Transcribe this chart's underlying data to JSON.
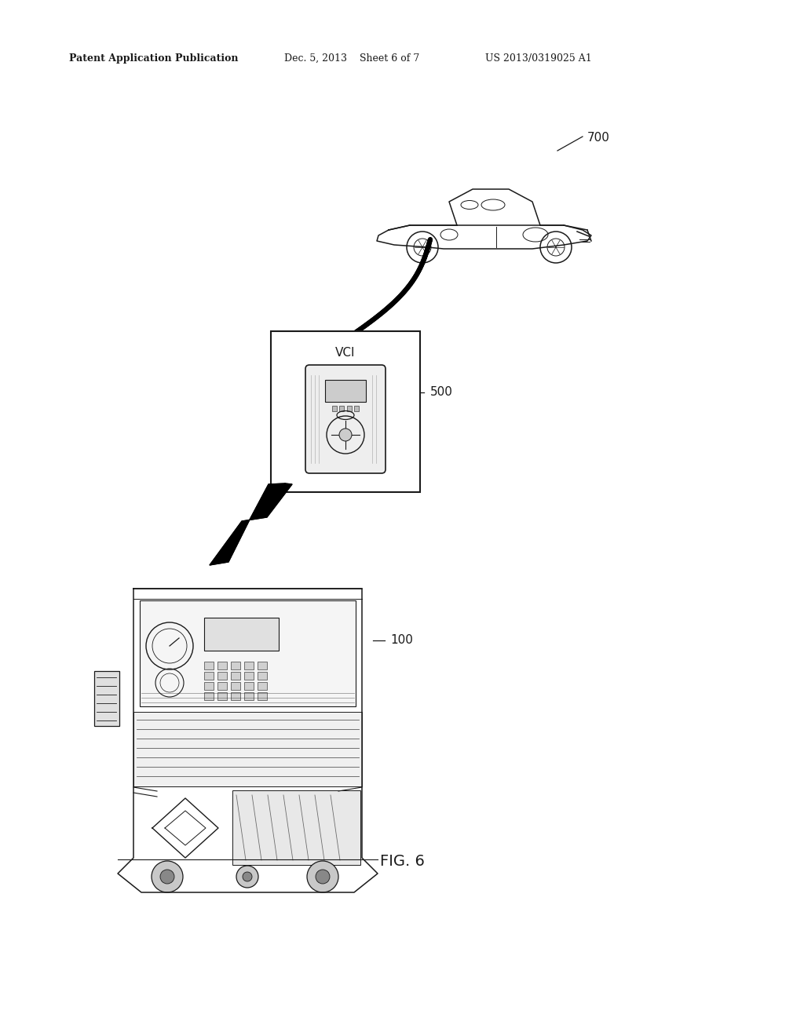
{
  "background_color": "#ffffff",
  "header_text": "Patent Application Publication",
  "header_date": "Dec. 5, 2013",
  "header_sheet": "Sheet 6 of 7",
  "header_patent": "US 2013/0319025 A1",
  "label_700": "700",
  "label_500": "500",
  "label_100": "100",
  "fig_label": "FIG. 6",
  "vci_label": "VCI",
  "line_color": "#1a1a1a",
  "text_color": "#1a1a1a"
}
